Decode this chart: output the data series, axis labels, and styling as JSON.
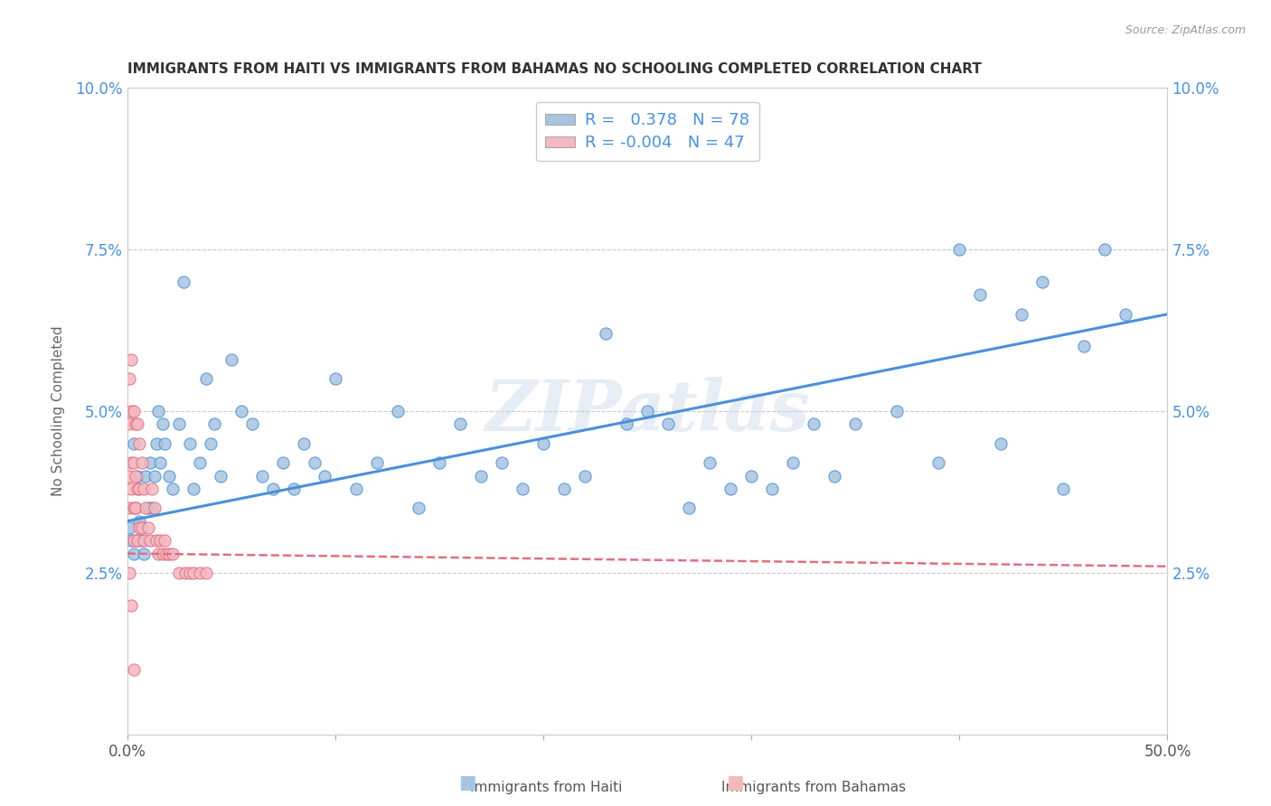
{
  "title": "IMMIGRANTS FROM HAITI VS IMMIGRANTS FROM BAHAMAS NO SCHOOLING COMPLETED CORRELATION CHART",
  "source": "Source: ZipAtlas.com",
  "ylabel": "No Schooling Completed",
  "xlim": [
    0,
    0.5
  ],
  "ylim": [
    0,
    0.1
  ],
  "haiti_R": 0.378,
  "haiti_N": 78,
  "bahamas_R": -0.004,
  "bahamas_N": 47,
  "haiti_color": "#a8c4e0",
  "bahamas_color": "#f4b8c1",
  "haiti_line_color": "#4a90d9",
  "bahamas_line_color": "#e07080",
  "legend_haiti": "Immigrants from Haiti",
  "legend_bahamas": "Immigrants from Bahamas",
  "haiti_x": [
    0.001,
    0.002,
    0.003,
    0.003,
    0.004,
    0.005,
    0.005,
    0.006,
    0.007,
    0.008,
    0.009,
    0.01,
    0.011,
    0.012,
    0.013,
    0.014,
    0.015,
    0.016,
    0.017,
    0.018,
    0.02,
    0.022,
    0.025,
    0.027,
    0.03,
    0.032,
    0.035,
    0.038,
    0.04,
    0.042,
    0.045,
    0.05,
    0.055,
    0.06,
    0.065,
    0.07,
    0.075,
    0.08,
    0.085,
    0.09,
    0.095,
    0.1,
    0.11,
    0.12,
    0.13,
    0.14,
    0.15,
    0.16,
    0.17,
    0.18,
    0.19,
    0.2,
    0.21,
    0.22,
    0.23,
    0.24,
    0.25,
    0.26,
    0.27,
    0.28,
    0.29,
    0.3,
    0.31,
    0.32,
    0.33,
    0.34,
    0.35,
    0.37,
    0.39,
    0.4,
    0.41,
    0.42,
    0.43,
    0.44,
    0.45,
    0.46,
    0.47,
    0.48
  ],
  "haiti_y": [
    0.032,
    0.03,
    0.028,
    0.045,
    0.035,
    0.03,
    0.04,
    0.033,
    0.03,
    0.028,
    0.04,
    0.035,
    0.042,
    0.035,
    0.04,
    0.045,
    0.05,
    0.042,
    0.048,
    0.045,
    0.04,
    0.038,
    0.048,
    0.07,
    0.045,
    0.038,
    0.042,
    0.055,
    0.045,
    0.048,
    0.04,
    0.058,
    0.05,
    0.048,
    0.04,
    0.038,
    0.042,
    0.038,
    0.045,
    0.042,
    0.04,
    0.055,
    0.038,
    0.042,
    0.05,
    0.035,
    0.042,
    0.048,
    0.04,
    0.042,
    0.038,
    0.045,
    0.038,
    0.04,
    0.062,
    0.048,
    0.05,
    0.048,
    0.035,
    0.042,
    0.038,
    0.04,
    0.038,
    0.042,
    0.048,
    0.04,
    0.048,
    0.05,
    0.042,
    0.075,
    0.068,
    0.045,
    0.065,
    0.07,
    0.038,
    0.06,
    0.075,
    0.065
  ],
  "bahamas_x": [
    0.001,
    0.001,
    0.001,
    0.001,
    0.002,
    0.002,
    0.002,
    0.002,
    0.003,
    0.003,
    0.003,
    0.003,
    0.004,
    0.004,
    0.004,
    0.005,
    0.005,
    0.005,
    0.006,
    0.006,
    0.006,
    0.007,
    0.007,
    0.008,
    0.008,
    0.009,
    0.01,
    0.011,
    0.012,
    0.013,
    0.014,
    0.015,
    0.016,
    0.017,
    0.018,
    0.019,
    0.02,
    0.022,
    0.025,
    0.028,
    0.03,
    0.032,
    0.035,
    0.038,
    0.001,
    0.002,
    0.003
  ],
  "bahamas_y": [
    0.055,
    0.048,
    0.04,
    0.035,
    0.058,
    0.05,
    0.042,
    0.038,
    0.05,
    0.042,
    0.035,
    0.03,
    0.048,
    0.04,
    0.035,
    0.048,
    0.038,
    0.03,
    0.045,
    0.038,
    0.032,
    0.042,
    0.032,
    0.038,
    0.03,
    0.035,
    0.032,
    0.03,
    0.038,
    0.035,
    0.03,
    0.028,
    0.03,
    0.028,
    0.03,
    0.028,
    0.028,
    0.028,
    0.025,
    0.025,
    0.025,
    0.025,
    0.025,
    0.025,
    0.025,
    0.02,
    0.01
  ],
  "watermark": "ZIPatlas",
  "background_color": "#ffffff",
  "grid_color": "#c8c8c8"
}
